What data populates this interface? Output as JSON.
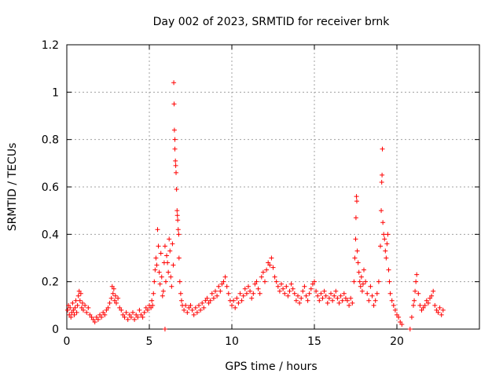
{
  "chart_data": {
    "type": "scatter",
    "title": "Day 002 of 2023, SRMTID for receiver brnk",
    "xlabel": "GPS time / hours",
    "ylabel": "SRMTID / TECUs",
    "xlim": [
      0,
      25
    ],
    "ylim": [
      0,
      1.2
    ],
    "x_ticks": [
      0,
      5,
      10,
      15,
      20
    ],
    "x_tick_labels": [
      "0",
      "5",
      "10",
      "15",
      "20"
    ],
    "y_ticks": [
      0,
      0.2,
      0.4,
      0.6,
      0.8,
      1.0,
      1.2
    ],
    "y_tick_labels": [
      "0",
      "0.2",
      "0.4",
      "0.6",
      "0.8",
      "1",
      "1.2"
    ],
    "grid": true,
    "marker": "+",
    "marker_color": "#ff0000",
    "series": [
      {
        "name": "SRMTID",
        "points": [
          [
            0.05,
            0.08
          ],
          [
            0.1,
            0.1
          ],
          [
            0.15,
            0.06
          ],
          [
            0.2,
            0.09
          ],
          [
            0.25,
            0.05
          ],
          [
            0.3,
            0.07
          ],
          [
            0.35,
            0.11
          ],
          [
            0.4,
            0.08
          ],
          [
            0.45,
            0.06
          ],
          [
            0.5,
            0.09
          ],
          [
            0.55,
            0.12
          ],
          [
            0.6,
            0.07
          ],
          [
            0.65,
            0.1
          ],
          [
            0.7,
            0.14
          ],
          [
            0.75,
            0.16
          ],
          [
            0.8,
            0.12
          ],
          [
            0.85,
            0.15
          ],
          [
            0.9,
            0.09
          ],
          [
            0.95,
            0.11
          ],
          [
            1.0,
            0.08
          ],
          [
            1.1,
            0.1
          ],
          [
            1.2,
            0.07
          ],
          [
            1.3,
            0.09
          ],
          [
            1.4,
            0.06
          ],
          [
            1.5,
            0.05
          ],
          [
            1.6,
            0.04
          ],
          [
            1.7,
            0.03
          ],
          [
            1.8,
            0.05
          ],
          [
            1.9,
            0.04
          ],
          [
            2.0,
            0.06
          ],
          [
            2.1,
            0.05
          ],
          [
            2.2,
            0.07
          ],
          [
            2.3,
            0.06
          ],
          [
            2.4,
            0.08
          ],
          [
            2.5,
            0.09
          ],
          [
            2.6,
            0.11
          ],
          [
            2.7,
            0.13
          ],
          [
            2.75,
            0.18
          ],
          [
            2.8,
            0.15
          ],
          [
            2.85,
            0.17
          ],
          [
            2.9,
            0.12
          ],
          [
            2.95,
            0.14
          ],
          [
            3.0,
            0.11
          ],
          [
            3.1,
            0.13
          ],
          [
            3.2,
            0.09
          ],
          [
            3.3,
            0.08
          ],
          [
            3.4,
            0.06
          ],
          [
            3.5,
            0.05
          ],
          [
            3.6,
            0.07
          ],
          [
            3.7,
            0.04
          ],
          [
            3.8,
            0.06
          ],
          [
            3.9,
            0.05
          ],
          [
            4.0,
            0.07
          ],
          [
            4.1,
            0.04
          ],
          [
            4.2,
            0.06
          ],
          [
            4.3,
            0.05
          ],
          [
            4.4,
            0.08
          ],
          [
            4.5,
            0.06
          ],
          [
            4.6,
            0.05
          ],
          [
            4.7,
            0.07
          ],
          [
            4.8,
            0.09
          ],
          [
            4.9,
            0.08
          ],
          [
            5.0,
            0.1
          ],
          [
            5.1,
            0.09
          ],
          [
            5.15,
            0.12
          ],
          [
            5.2,
            0.1
          ],
          [
            5.25,
            0.15
          ],
          [
            5.3,
            0.2
          ],
          [
            5.35,
            0.25
          ],
          [
            5.4,
            0.3
          ],
          [
            5.45,
            0.27
          ],
          [
            5.5,
            0.42
          ],
          [
            5.55,
            0.35
          ],
          [
            5.6,
            0.24
          ],
          [
            5.65,
            0.19
          ],
          [
            5.7,
            0.32
          ],
          [
            5.75,
            0.22
          ],
          [
            5.8,
            0.14
          ],
          [
            5.85,
            0.16
          ],
          [
            5.9,
            0.28
          ],
          [
            5.95,
            0.35
          ],
          [
            5.95,
            0.0
          ],
          [
            6.0,
            0.2
          ],
          [
            6.05,
            0.31
          ],
          [
            6.1,
            0.28
          ],
          [
            6.15,
            0.24
          ],
          [
            6.2,
            0.38
          ],
          [
            6.25,
            0.33
          ],
          [
            6.3,
            0.22
          ],
          [
            6.35,
            0.18
          ],
          [
            6.4,
            0.36
          ],
          [
            6.45,
            0.27
          ],
          [
            6.48,
            1.04
          ],
          [
            6.5,
            0.95
          ],
          [
            6.52,
            0.84
          ],
          [
            6.55,
            0.76
          ],
          [
            6.55,
            0.8
          ],
          [
            6.58,
            0.71
          ],
          [
            6.6,
            0.69
          ],
          [
            6.62,
            0.66
          ],
          [
            6.65,
            0.59
          ],
          [
            6.68,
            0.5
          ],
          [
            6.7,
            0.48
          ],
          [
            6.72,
            0.46
          ],
          [
            6.75,
            0.42
          ],
          [
            6.78,
            0.4
          ],
          [
            6.8,
            0.3
          ],
          [
            6.85,
            0.2
          ],
          [
            6.9,
            0.15
          ],
          [
            6.95,
            0.12
          ],
          [
            7.0,
            0.1
          ],
          [
            7.1,
            0.08
          ],
          [
            7.2,
            0.1
          ],
          [
            7.3,
            0.07
          ],
          [
            7.4,
            0.09
          ],
          [
            7.5,
            0.1
          ],
          [
            7.6,
            0.08
          ],
          [
            7.7,
            0.06
          ],
          [
            7.8,
            0.09
          ],
          [
            7.9,
            0.07
          ],
          [
            8.0,
            0.1
          ],
          [
            8.1,
            0.08
          ],
          [
            8.2,
            0.11
          ],
          [
            8.3,
            0.09
          ],
          [
            8.4,
            0.12
          ],
          [
            8.5,
            0.13
          ],
          [
            8.6,
            0.11
          ],
          [
            8.7,
            0.12
          ],
          [
            8.8,
            0.15
          ],
          [
            8.9,
            0.13
          ],
          [
            9.0,
            0.16
          ],
          [
            9.1,
            0.14
          ],
          [
            9.2,
            0.18
          ],
          [
            9.3,
            0.16
          ],
          [
            9.4,
            0.19
          ],
          [
            9.5,
            0.2
          ],
          [
            9.6,
            0.22
          ],
          [
            9.7,
            0.18
          ],
          [
            9.8,
            0.15
          ],
          [
            9.9,
            0.12
          ],
          [
            10.0,
            0.1
          ],
          [
            10.1,
            0.12
          ],
          [
            10.2,
            0.09
          ],
          [
            10.3,
            0.13
          ],
          [
            10.4,
            0.11
          ],
          [
            10.5,
            0.15
          ],
          [
            10.6,
            0.12
          ],
          [
            10.7,
            0.14
          ],
          [
            10.8,
            0.17
          ],
          [
            10.9,
            0.15
          ],
          [
            11.0,
            0.18
          ],
          [
            11.1,
            0.16
          ],
          [
            11.2,
            0.13
          ],
          [
            11.3,
            0.15
          ],
          [
            11.4,
            0.19
          ],
          [
            11.5,
            0.2
          ],
          [
            11.6,
            0.17
          ],
          [
            11.7,
            0.15
          ],
          [
            11.8,
            0.22
          ],
          [
            11.9,
            0.24
          ],
          [
            12.0,
            0.2
          ],
          [
            12.1,
            0.25
          ],
          [
            12.2,
            0.28
          ],
          [
            12.3,
            0.27
          ],
          [
            12.4,
            0.3
          ],
          [
            12.5,
            0.26
          ],
          [
            12.6,
            0.22
          ],
          [
            12.7,
            0.2
          ],
          [
            12.8,
            0.18
          ],
          [
            12.9,
            0.16
          ],
          [
            13.0,
            0.19
          ],
          [
            13.1,
            0.17
          ],
          [
            13.2,
            0.15
          ],
          [
            13.3,
            0.18
          ],
          [
            13.4,
            0.14
          ],
          [
            13.5,
            0.16
          ],
          [
            13.6,
            0.19
          ],
          [
            13.7,
            0.17
          ],
          [
            13.8,
            0.15
          ],
          [
            13.9,
            0.12
          ],
          [
            14.0,
            0.14
          ],
          [
            14.1,
            0.11
          ],
          [
            14.2,
            0.13
          ],
          [
            14.3,
            0.16
          ],
          [
            14.4,
            0.18
          ],
          [
            14.5,
            0.14
          ],
          [
            14.6,
            0.12
          ],
          [
            14.7,
            0.15
          ],
          [
            14.8,
            0.17
          ],
          [
            14.9,
            0.19
          ],
          [
            15.0,
            0.2
          ],
          [
            15.1,
            0.16
          ],
          [
            15.2,
            0.14
          ],
          [
            15.3,
            0.12
          ],
          [
            15.4,
            0.15
          ],
          [
            15.5,
            0.13
          ],
          [
            15.6,
            0.16
          ],
          [
            15.7,
            0.14
          ],
          [
            15.8,
            0.11
          ],
          [
            15.9,
            0.13
          ],
          [
            16.0,
            0.15
          ],
          [
            16.1,
            0.12
          ],
          [
            16.2,
            0.14
          ],
          [
            16.3,
            0.16
          ],
          [
            16.4,
            0.13
          ],
          [
            16.5,
            0.11
          ],
          [
            16.6,
            0.14
          ],
          [
            16.7,
            0.12
          ],
          [
            16.8,
            0.15
          ],
          [
            16.9,
            0.13
          ],
          [
            17.0,
            0.12
          ],
          [
            17.1,
            0.1
          ],
          [
            17.2,
            0.13
          ],
          [
            17.3,
            0.11
          ],
          [
            17.4,
            0.2
          ],
          [
            17.45,
            0.3
          ],
          [
            17.5,
            0.38
          ],
          [
            17.52,
            0.47
          ],
          [
            17.55,
            0.56
          ],
          [
            17.57,
            0.54
          ],
          [
            17.6,
            0.33
          ],
          [
            17.65,
            0.28
          ],
          [
            17.7,
            0.24
          ],
          [
            17.75,
            0.2
          ],
          [
            17.8,
            0.18
          ],
          [
            17.85,
            0.22
          ],
          [
            17.9,
            0.16
          ],
          [
            17.95,
            0.19
          ],
          [
            18.0,
            0.25
          ],
          [
            18.1,
            0.2
          ],
          [
            18.2,
            0.15
          ],
          [
            18.3,
            0.12
          ],
          [
            18.4,
            0.18
          ],
          [
            18.5,
            0.14
          ],
          [
            18.6,
            0.1
          ],
          [
            18.7,
            0.12
          ],
          [
            18.8,
            0.15
          ],
          [
            18.9,
            0.2
          ],
          [
            19.0,
            0.35
          ],
          [
            19.05,
            0.5
          ],
          [
            19.08,
            0.62
          ],
          [
            19.1,
            0.65
          ],
          [
            19.12,
            0.76
          ],
          [
            19.15,
            0.45
          ],
          [
            19.2,
            0.4
          ],
          [
            19.25,
            0.38
          ],
          [
            19.3,
            0.33
          ],
          [
            19.35,
            0.3
          ],
          [
            19.4,
            0.36
          ],
          [
            19.45,
            0.4
          ],
          [
            19.5,
            0.25
          ],
          [
            19.55,
            0.2
          ],
          [
            19.6,
            0.15
          ],
          [
            19.7,
            0.12
          ],
          [
            19.8,
            0.1
          ],
          [
            19.9,
            0.08
          ],
          [
            20.0,
            0.06
          ],
          [
            20.1,
            0.05
          ],
          [
            20.2,
            0.03
          ],
          [
            20.3,
            0.02
          ],
          [
            20.8,
            0.0
          ],
          [
            20.9,
            0.05
          ],
          [
            21.0,
            0.1
          ],
          [
            21.05,
            0.12
          ],
          [
            21.1,
            0.16
          ],
          [
            21.15,
            0.2
          ],
          [
            21.2,
            0.23
          ],
          [
            21.3,
            0.15
          ],
          [
            21.4,
            0.1
          ],
          [
            21.5,
            0.08
          ],
          [
            21.6,
            0.09
          ],
          [
            21.7,
            0.1
          ],
          [
            21.8,
            0.12
          ],
          [
            21.9,
            0.11
          ],
          [
            22.0,
            0.13
          ],
          [
            22.1,
            0.14
          ],
          [
            22.2,
            0.16
          ],
          [
            22.3,
            0.1
          ],
          [
            22.4,
            0.08
          ],
          [
            22.5,
            0.07
          ],
          [
            22.6,
            0.09
          ],
          [
            22.7,
            0.06
          ],
          [
            22.8,
            0.08
          ]
        ]
      }
    ]
  }
}
